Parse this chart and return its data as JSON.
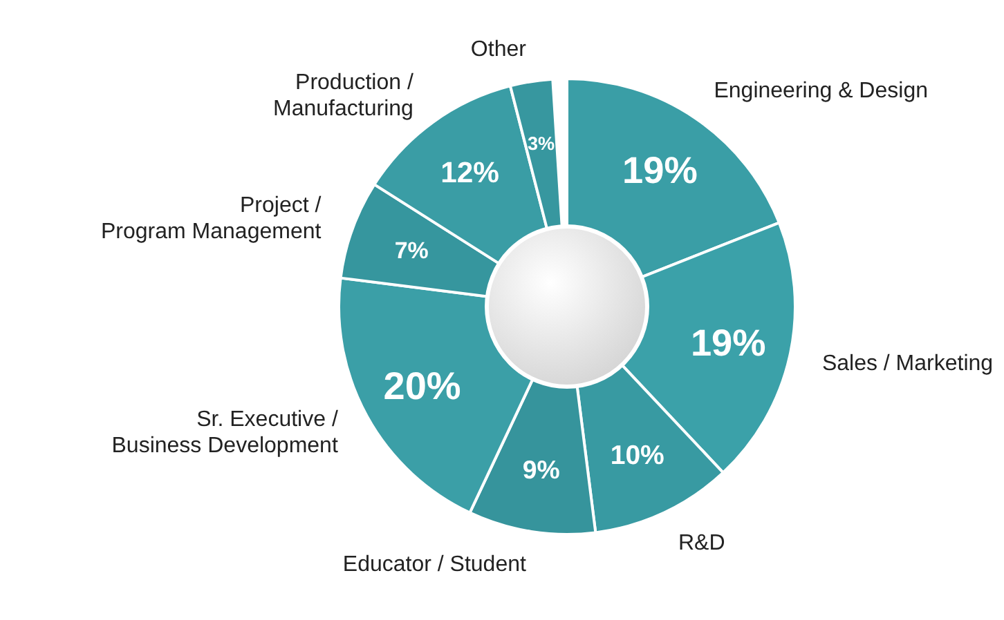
{
  "chart_data": {
    "type": "donut",
    "categories": [
      "Engineering & Design",
      "Sales / Marketing",
      "R&D",
      "Educator / Student",
      "Sr. Executive / Business Development",
      "Project / Program Management",
      "Production / Manufacturing",
      "Other"
    ],
    "values": [
      19,
      19,
      10,
      9,
      20,
      7,
      12,
      3
    ],
    "value_labels": [
      "19%",
      "19%",
      "10%",
      "9%",
      "20%",
      "7%",
      "12%",
      "3%"
    ],
    "colors": [
      "#3a9ea6",
      "#3ba1a9",
      "#389aa2",
      "#36949c",
      "#3b9fa7",
      "#36969e",
      "#3a9da5",
      "#37979f"
    ]
  }
}
